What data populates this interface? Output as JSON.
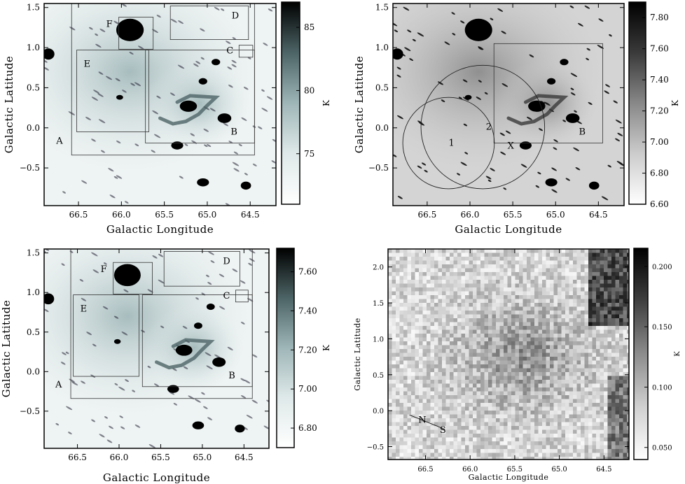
{
  "chart_data": [
    {
      "type": "heatmap",
      "panel": "top-left",
      "xlabel": "Galactic Longitude",
      "ylabel": "Galactic Latitude",
      "xlim": [
        66.9,
        64.2
      ],
      "ylim": [
        -0.97,
        1.55
      ],
      "xticks": [
        "66.5",
        "66.0",
        "65.5",
        "65.0",
        "64.5"
      ],
      "yticks": [
        "1.5",
        "1.0",
        "0.5",
        "0.0",
        "−0.5"
      ],
      "colorbar": {
        "unit": "K",
        "range": [
          71,
          87
        ],
        "ticks": [
          "85",
          "80",
          "75"
        ],
        "tick_values": [
          85,
          80,
          75
        ]
      },
      "colormap": [
        "#ffffff",
        "#dfe9e9",
        "#9fb6b8",
        "#4d6466",
        "#000000"
      ],
      "boxes": [
        {
          "label": "A",
          "x": [
            66.58,
            64.45
          ],
          "y": [
            -0.34,
            1.55
          ]
        },
        {
          "label": "B",
          "x": [
            65.72,
            64.45
          ],
          "y": [
            -0.19,
            0.97
          ]
        },
        {
          "label": "C",
          "x": [
            64.63,
            64.47
          ],
          "y": [
            0.88,
            1.03
          ]
        },
        {
          "label": "D",
          "x": [
            65.43,
            64.52
          ],
          "y": [
            1.1,
            1.52
          ]
        },
        {
          "label": "E",
          "x": [
            66.52,
            65.68
          ],
          "y": [
            -0.05,
            0.97
          ]
        },
        {
          "label": "F",
          "x": [
            66.03,
            65.63
          ],
          "y": [
            0.98,
            1.38
          ]
        }
      ]
    },
    {
      "type": "heatmap",
      "panel": "top-right",
      "xlabel": "Galactic Longitude",
      "ylabel": "Galactic Latitude",
      "xlim": [
        66.9,
        64.2
      ],
      "ylim": [
        -0.97,
        1.55
      ],
      "xticks": [
        "66.5",
        "66.0",
        "65.5",
        "65.0",
        "64.5"
      ],
      "yticks": [
        "1.5",
        "1.0",
        "0.5",
        "0.0",
        "−0.5"
      ],
      "colorbar": {
        "unit": "K",
        "range": [
          6.6,
          7.9
        ],
        "ticks": [
          "7.80",
          "7.60",
          "7.40",
          "7.20",
          "7.00",
          "6.80",
          "6.60"
        ],
        "tick_values": [
          7.8,
          7.6,
          7.4,
          7.2,
          7.0,
          6.8,
          6.6
        ]
      },
      "colormap": [
        "#ffffff",
        "#cccccc",
        "#888888",
        "#3a3a3a",
        "#000000"
      ],
      "boxes": [
        {
          "label": "B",
          "x": [
            65.72,
            64.45
          ],
          "y": [
            -0.19,
            1.05
          ]
        }
      ],
      "circles": [
        {
          "label": "1",
          "center": [
            66.25,
            -0.19
          ],
          "radius": 0.57
        },
        {
          "label": "2",
          "center": [
            65.85,
            0.01
          ],
          "radius": 0.77
        }
      ],
      "markers": [
        {
          "label": "X",
          "x": 65.52,
          "y": -0.17
        }
      ]
    },
    {
      "type": "heatmap",
      "panel": "bottom-left",
      "xlabel": "Galactic Longitude",
      "ylabel": "Galactic Latitude",
      "xlim": [
        66.9,
        64.2
      ],
      "ylim": [
        -0.97,
        1.55
      ],
      "xticks": [
        "66.5",
        "66.0",
        "65.5",
        "65.0",
        "64.5"
      ],
      "yticks": [
        "1.5",
        "1.0",
        "0.5",
        "0.0",
        "−0.5"
      ],
      "colorbar": {
        "unit": "K",
        "range": [
          6.7,
          7.72
        ],
        "ticks": [
          "7.60",
          "7.40",
          "7.20",
          "7.00",
          "6.80"
        ],
        "tick_values": [
          7.6,
          7.4,
          7.2,
          7.0,
          6.8
        ]
      },
      "colormap": [
        "#ffffff",
        "#dfe9e9",
        "#9fb6b8",
        "#4d6466",
        "#000000"
      ],
      "boxes": [
        {
          "label": "A",
          "x": [
            66.58,
            64.4
          ],
          "y": [
            -0.34,
            1.55
          ]
        },
        {
          "label": "B",
          "x": [
            65.72,
            64.4
          ],
          "y": [
            -0.19,
            0.97
          ]
        },
        {
          "label": "C",
          "x": [
            64.6,
            64.45
          ],
          "y": [
            0.88,
            1.03
          ]
        },
        {
          "label": "D",
          "x": [
            65.46,
            64.55
          ],
          "y": [
            1.08,
            1.52
          ]
        },
        {
          "label": "E",
          "x": [
            66.55,
            65.76
          ],
          "y": [
            -0.06,
            0.97
          ]
        },
        {
          "label": "F",
          "x": [
            66.07,
            65.6
          ],
          "y": [
            0.98,
            1.38
          ]
        }
      ]
    },
    {
      "type": "heatmap",
      "panel": "bottom-right",
      "xlabel": "Galactic Longitude",
      "ylabel": "Galactic Latitude",
      "xlim": [
        66.92,
        64.22
      ],
      "ylim": [
        -0.68,
        2.25
      ],
      "xticks": [
        "66.5",
        "66.0",
        "65.5",
        "65.0",
        "64.5"
      ],
      "yticks": [
        "2.0",
        "1.5",
        "1.0",
        "0.5",
        "0.0",
        "−0.5"
      ],
      "colorbar": {
        "unit": "K",
        "range": [
          0.04,
          0.215
        ],
        "ticks": [
          "0.200",
          "0.150",
          "0.100",
          "0.050"
        ],
        "tick_values": [
          0.2,
          0.15,
          0.1,
          0.05
        ]
      },
      "colormap": [
        "#ffffff",
        "#d0d0d0",
        "#8c8c8c",
        "#404040",
        "#000000"
      ],
      "annotations": [
        {
          "text": "N",
          "x": 66.58,
          "y": -0.17
        },
        {
          "text": "S",
          "x": 66.34,
          "y": -0.31
        }
      ]
    }
  ]
}
